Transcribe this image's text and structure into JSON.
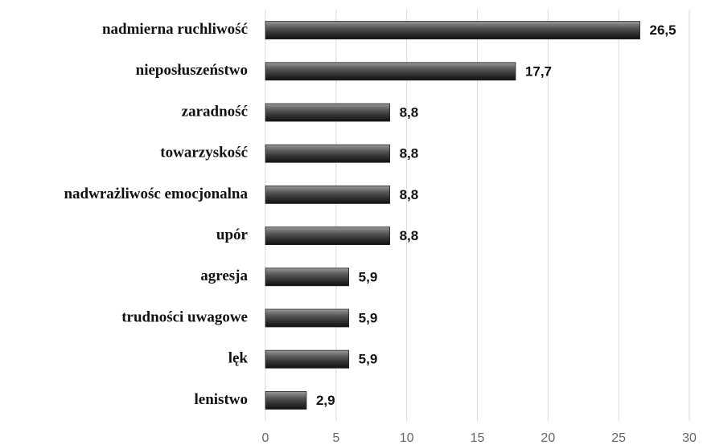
{
  "chart_data": {
    "type": "bar",
    "orientation": "horizontal",
    "color": "#3a3a3a",
    "categories": [
      "nadmierna ruchliwość",
      "nieposłuszeństwo",
      "zaradność",
      "towarzyskość",
      "nadwrażliwośc emocjonalna",
      "upór",
      "agresja",
      "trudności uwagowe",
      "lęk",
      "lenistwo"
    ],
    "values": [
      26.5,
      17.7,
      8.8,
      8.8,
      8.8,
      8.8,
      5.9,
      5.9,
      5.9,
      2.9
    ],
    "value_labels": [
      "26,5",
      "17,7",
      "8,8",
      "8,8",
      "8,8",
      "8,8",
      "5,9",
      "5,9",
      "5,9",
      "2,9"
    ],
    "xlim": [
      0,
      30
    ],
    "xticks": [
      0,
      5,
      10,
      15,
      20,
      25,
      30
    ],
    "grid": true
  }
}
